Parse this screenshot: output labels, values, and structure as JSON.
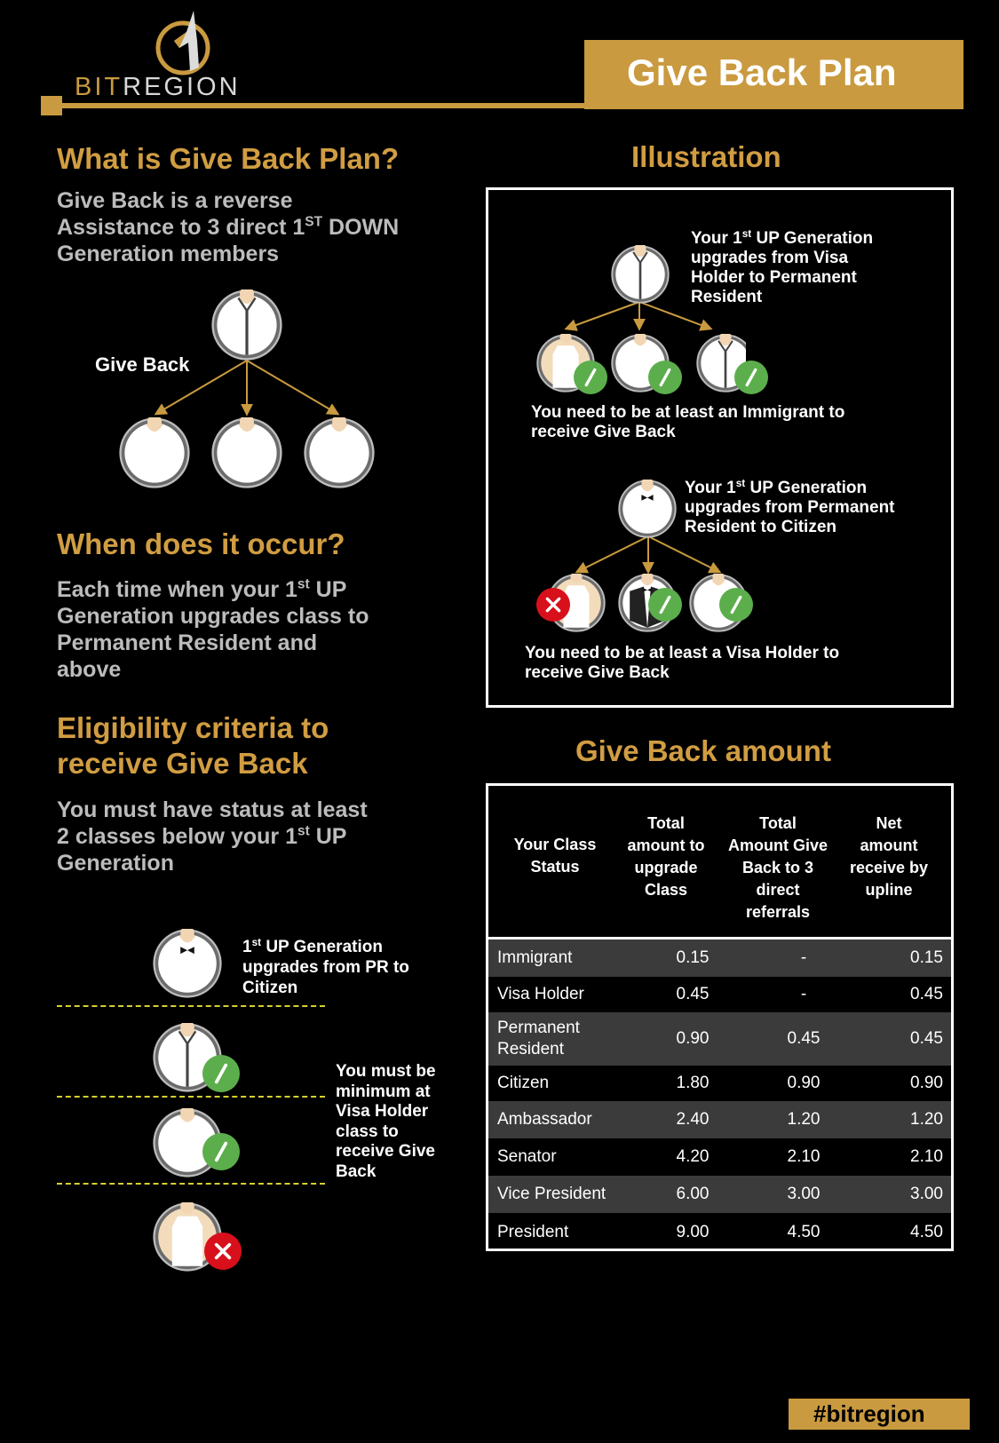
{
  "header": {
    "logo_text_gold": "BIT",
    "logo_text_white": "REGION",
    "title": "Give Back Plan"
  },
  "colors": {
    "gold": "#c99a3f",
    "green_check": "#5cae4c",
    "red_x": "#d8101c",
    "background": "#000000"
  },
  "what": {
    "heading": "What is Give Back Plan?",
    "line1": "Give Back is a reverse",
    "line2_pre": "Assistance to 3 direct 1",
    "line2_sup": "ST",
    "line2_post": " DOWN",
    "line3": "Generation members",
    "diagram_label": "Give Back"
  },
  "when": {
    "heading": "When does it occur?",
    "line1_pre": "Each time when your 1",
    "line1_sup": "st",
    "line1_post": " UP",
    "line2": "Generation upgrades class to",
    "line3": "Permanent Resident and",
    "line4": "above"
  },
  "elig": {
    "heading1": "Eligibility criteria to",
    "heading2": "receive Give Back",
    "line1": "You must have status at least",
    "line2_pre": "2 classes below your 1",
    "line2_sup": "st",
    "line2_post": " UP",
    "line3": "Generation",
    "top_sup": "st",
    "top_l1_pre": "1",
    "top_l1_post": " UP Generation",
    "top_l2": "upgrades from PR to",
    "top_l3": "Citizen",
    "side_l1": "You must be",
    "side_l2": "minimum at",
    "side_l3": "Visa Holder",
    "side_l4": "class to",
    "side_l5": "receive Give",
    "side_l6": "Back"
  },
  "illustration": {
    "heading": "Illustration",
    "s1_l1_pre": "Your 1",
    "s1_l1_sup": "st",
    "s1_l1_post": " UP Generation",
    "s1_l2": "upgrades from Visa",
    "s1_l3": "Holder to Permanent",
    "s1_l4": "Resident",
    "s1_note1": "You need to be at least an Immigrant to",
    "s1_note2": "receive Give Back",
    "s2_l1_pre": "Your 1",
    "s2_l1_sup": "st",
    "s2_l1_post": " UP Generation",
    "s2_l2": "upgrades from Permanent",
    "s2_l3": "Resident to Citizen",
    "s2_note1": "You need to be at least a Visa Holder to",
    "s2_note2": "receive Give Back"
  },
  "amount": {
    "heading": "Give Back amount",
    "columns": [
      [
        "Your Class",
        "Status"
      ],
      [
        "Total",
        "amount to",
        "upgrade",
        "Class"
      ],
      [
        "Total",
        "Amount Give",
        "Back to 3",
        "direct",
        "referrals"
      ],
      [
        "Net",
        "amount",
        "receive by",
        "upline"
      ]
    ],
    "rows": [
      {
        "status": "Immigrant",
        "total": "0.15",
        "giveback": "-",
        "net": "0.15"
      },
      {
        "status": "Visa Holder",
        "total": "0.45",
        "giveback": "-",
        "net": "0.45"
      },
      {
        "status": "Permanent Resident",
        "total": "0.90",
        "giveback": "0.45",
        "net": "0.45"
      },
      {
        "status": "Citizen",
        "total": "1.80",
        "giveback": "0.90",
        "net": "0.90"
      },
      {
        "status": "Ambassador",
        "total": "2.40",
        "giveback": "1.20",
        "net": "1.20"
      },
      {
        "status": "Senator",
        "total": "4.20",
        "giveback": "2.10",
        "net": "2.10"
      },
      {
        "status": "Vice President",
        "total": "6.00",
        "giveback": "3.00",
        "net": "3.00"
      },
      {
        "status": "President",
        "total": "9.00",
        "giveback": "4.50",
        "net": "4.50"
      }
    ]
  },
  "footer": {
    "hashtag": "#bitregion"
  }
}
